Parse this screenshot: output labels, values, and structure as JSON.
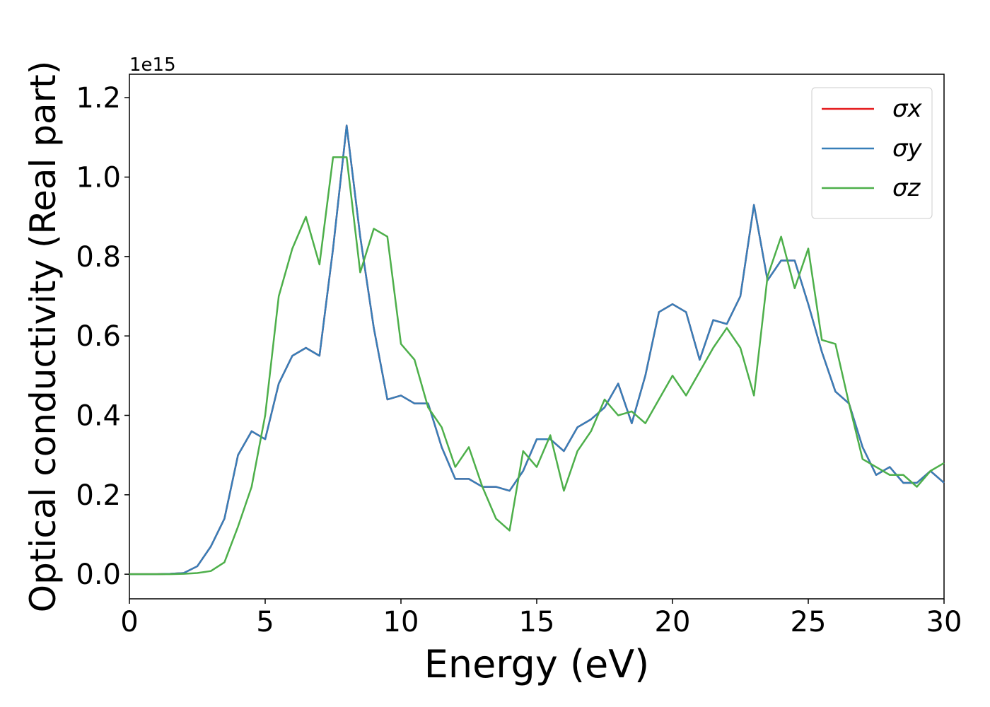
{
  "chart_data": {
    "type": "line",
    "xlabel": "Energy (eV)",
    "ylabel": "Optical conductivity (Real part)",
    "y_offset_label": "1e15",
    "x": [
      0,
      0.5,
      1,
      1.5,
      2,
      2.5,
      3,
      3.5,
      4,
      4.5,
      5,
      5.5,
      6,
      6.5,
      7,
      7.5,
      8,
      8.5,
      9,
      9.5,
      10,
      10.5,
      11,
      11.5,
      12,
      12.5,
      13,
      13.5,
      14,
      14.5,
      15,
      15.5,
      16,
      16.5,
      17,
      17.5,
      18,
      18.5,
      19,
      19.5,
      20,
      20.5,
      21,
      21.5,
      22,
      22.5,
      23,
      23.5,
      24,
      24.5,
      25,
      25.5,
      26,
      26.5,
      27,
      27.5,
      28,
      28.5,
      29,
      29.5,
      30
    ],
    "series": [
      {
        "name": "σx",
        "color": "#e41a1c",
        "values": [
          0,
          0,
          0,
          0.001,
          0.003,
          0.02,
          0.07,
          0.14,
          0.3,
          0.36,
          0.34,
          0.48,
          0.55,
          0.57,
          0.55,
          0.82,
          1.13,
          0.85,
          0.62,
          0.44,
          0.45,
          0.43,
          0.43,
          0.32,
          0.24,
          0.24,
          0.22,
          0.22,
          0.21,
          0.26,
          0.34,
          0.34,
          0.31,
          0.37,
          0.39,
          0.42,
          0.48,
          0.38,
          0.5,
          0.66,
          0.68,
          0.66,
          0.54,
          0.64,
          0.63,
          0.7,
          0.93,
          0.74,
          0.79,
          0.79,
          0.68,
          0.56,
          0.46,
          0.43,
          0.32,
          0.25,
          0.27,
          0.23,
          0.23,
          0.26,
          0.23
        ]
      },
      {
        "name": "σy",
        "color": "#377eb8",
        "values": [
          0,
          0,
          0,
          0.001,
          0.003,
          0.02,
          0.07,
          0.14,
          0.3,
          0.36,
          0.34,
          0.48,
          0.55,
          0.57,
          0.55,
          0.82,
          1.13,
          0.85,
          0.62,
          0.44,
          0.45,
          0.43,
          0.43,
          0.32,
          0.24,
          0.24,
          0.22,
          0.22,
          0.21,
          0.26,
          0.34,
          0.34,
          0.31,
          0.37,
          0.39,
          0.42,
          0.48,
          0.38,
          0.5,
          0.66,
          0.68,
          0.66,
          0.54,
          0.64,
          0.63,
          0.7,
          0.93,
          0.74,
          0.79,
          0.79,
          0.68,
          0.56,
          0.46,
          0.43,
          0.32,
          0.25,
          0.27,
          0.23,
          0.23,
          0.26,
          0.23
        ]
      },
      {
        "name": "σz",
        "color": "#4daf4a",
        "values": [
          0,
          0,
          0,
          0,
          0.001,
          0.003,
          0.008,
          0.03,
          0.12,
          0.22,
          0.4,
          0.7,
          0.82,
          0.9,
          0.78,
          1.05,
          1.05,
          0.76,
          0.87,
          0.85,
          0.58,
          0.54,
          0.42,
          0.37,
          0.27,
          0.32,
          0.22,
          0.14,
          0.11,
          0.31,
          0.27,
          0.35,
          0.21,
          0.31,
          0.36,
          0.44,
          0.4,
          0.41,
          0.38,
          0.44,
          0.5,
          0.45,
          0.51,
          0.57,
          0.62,
          0.57,
          0.45,
          0.75,
          0.85,
          0.72,
          0.82,
          0.59,
          0.58,
          0.43,
          0.29,
          0.27,
          0.25,
          0.25,
          0.22,
          0.26,
          0.28
        ]
      }
    ],
    "xlim": [
      0,
      30
    ],
    "xticks": [
      0,
      5,
      10,
      15,
      20,
      25,
      30
    ],
    "ylim": [
      -0.062,
      1.259
    ],
    "yticks": [
      {
        "value": 0,
        "label": "0.0"
      },
      0.2,
      0.4,
      0.6,
      0.8,
      {
        "value": 1,
        "label": "1.0"
      },
      1.2
    ],
    "legend": "upper right"
  }
}
